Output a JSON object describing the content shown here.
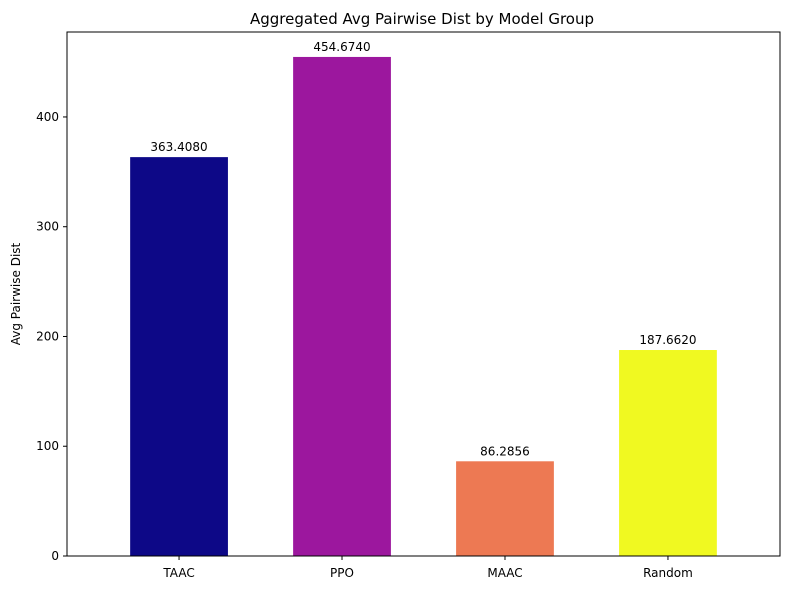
{
  "chart_data": {
    "type": "bar",
    "title": "Aggregated Avg Pairwise Dist by Model Group",
    "xlabel": "",
    "ylabel": "Avg Pairwise Dist",
    "categories": [
      "TAAC",
      "PPO",
      "MAAC",
      "Random"
    ],
    "values": [
      363.408,
      454.674,
      86.2856,
      187.662
    ],
    "value_labels": [
      "363.4080",
      "454.6740",
      "86.2856",
      "187.6620"
    ],
    "colors": [
      "#0d0887",
      "#9c179e",
      "#ed7953",
      "#f0f921"
    ],
    "ylim": [
      0,
      477.4
    ],
    "yticks": [
      0,
      100,
      200,
      300,
      400
    ],
    "grid": false,
    "legend": "none"
  }
}
